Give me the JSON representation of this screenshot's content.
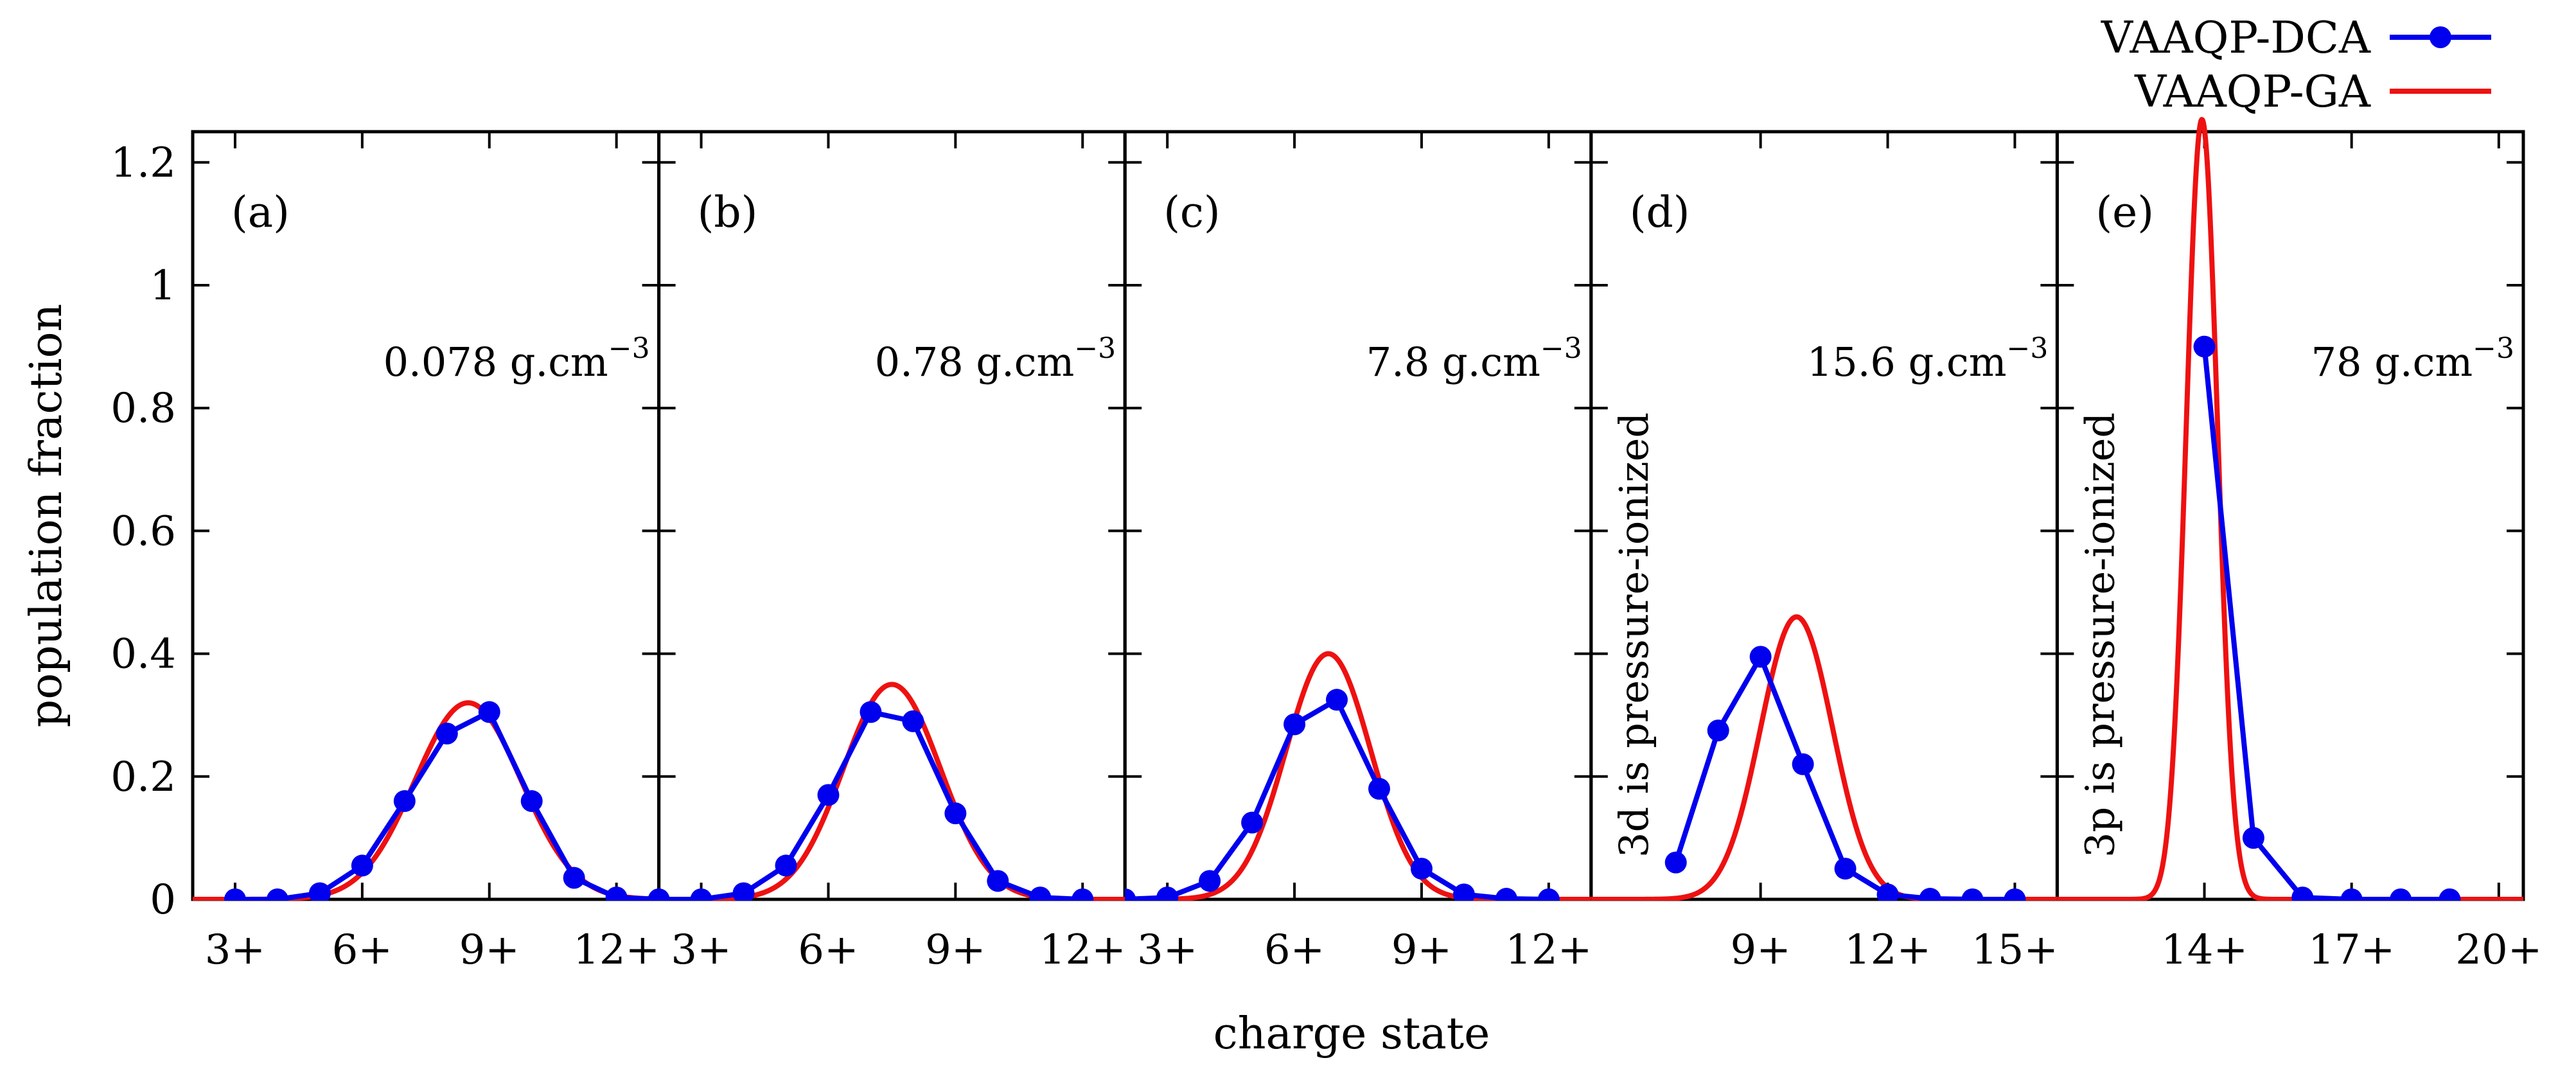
{
  "chart_data": {
    "type": "line",
    "ylabel": "population fraction",
    "xlabel": "charge state",
    "ylim": [
      0,
      1.25
    ],
    "yticks": [
      0,
      0.2,
      0.4,
      0.6,
      0.8,
      1,
      1.2
    ],
    "ytick_labels": [
      "0",
      "0.2",
      "0.4",
      "0.6",
      "0.8",
      "1",
      "1.2"
    ],
    "legend": {
      "position": "top-right",
      "entries": [
        {
          "label": "VAAQP-DCA",
          "color": "#0000ee",
          "style": "line-points"
        },
        {
          "label": "VAAQP-GA",
          "color": "#ee1111",
          "style": "line"
        }
      ]
    },
    "panels": [
      {
        "tag": "(a)",
        "density_value": "0.078",
        "density_unit": "g.cm",
        "density_exp": "−3",
        "xlim": [
          2,
          13
        ],
        "xticks": [
          3,
          6,
          9,
          12
        ],
        "xtick_labels": [
          "3+",
          "6+",
          "9+",
          "12+"
        ],
        "note": "",
        "dca": {
          "x": [
            3,
            4,
            5,
            6,
            7,
            8,
            9,
            10,
            11,
            12,
            13
          ],
          "y": [
            0.0,
            0.0,
            0.01,
            0.055,
            0.16,
            0.27,
            0.305,
            0.16,
            0.035,
            0.003,
            0.0
          ]
        },
        "ga": {
          "mean": 8.5,
          "sigma": 1.25,
          "peak": 0.32
        }
      },
      {
        "tag": "(b)",
        "density_value": "0.78",
        "density_unit": "g.cm",
        "density_exp": "−3",
        "xlim": [
          2,
          13
        ],
        "xticks": [
          3,
          6,
          9,
          12
        ],
        "xtick_labels": [
          "3+",
          "6+",
          "9+",
          "12+"
        ],
        "note": "",
        "dca": {
          "x": [
            2,
            3,
            4,
            5,
            6,
            7,
            8,
            9,
            10,
            11,
            12
          ],
          "y": [
            0.0,
            0.0,
            0.01,
            0.055,
            0.17,
            0.305,
            0.29,
            0.14,
            0.03,
            0.003,
            0.0
          ]
        },
        "ga": {
          "mean": 7.5,
          "sigma": 1.15,
          "peak": 0.35
        }
      },
      {
        "tag": "(c)",
        "density_value": "7.8",
        "density_unit": "g.cm",
        "density_exp": "−3",
        "xlim": [
          2,
          13
        ],
        "xticks": [
          3,
          6,
          9,
          12
        ],
        "xtick_labels": [
          "3+",
          "6+",
          "9+",
          "12+"
        ],
        "note": "",
        "dca": {
          "x": [
            2,
            3,
            4,
            5,
            6,
            7,
            8,
            9,
            10,
            11,
            12
          ],
          "y": [
            0.0,
            0.003,
            0.03,
            0.125,
            0.285,
            0.325,
            0.18,
            0.05,
            0.008,
            0.001,
            0.0
          ]
        },
        "ga": {
          "mean": 6.8,
          "sigma": 1.0,
          "peak": 0.4
        }
      },
      {
        "tag": "(d)",
        "density_value": "15.6",
        "density_unit": "g.cm",
        "density_exp": "−3",
        "xlim": [
          5,
          16
        ],
        "xticks": [
          9,
          12,
          15
        ],
        "xtick_labels": [
          "9+",
          "12+",
          "15+"
        ],
        "note": "3d is pressure-ionized",
        "dca": {
          "x": [
            7,
            8,
            9,
            10,
            11,
            12,
            13,
            14,
            15
          ],
          "y": [
            0.06,
            0.275,
            0.395,
            0.22,
            0.05,
            0.008,
            0.001,
            0.0,
            0.0
          ]
        },
        "ga": {
          "mean": 9.85,
          "sigma": 0.85,
          "peak": 0.46
        }
      },
      {
        "tag": "(e)",
        "density_value": "78",
        "density_unit": "g.cm",
        "density_exp": "−3",
        "xlim": [
          11,
          20.5
        ],
        "xticks": [
          14,
          17,
          20
        ],
        "xtick_labels": [
          "14+",
          "17+",
          "20+"
        ],
        "note": "3p is pressure-ionized",
        "dca": {
          "x": [
            14,
            15,
            16,
            17,
            18,
            19
          ],
          "y": [
            0.9,
            0.1,
            0.003,
            0.0,
            0.0,
            0.0
          ]
        },
        "ga": {
          "mean": 13.95,
          "sigma": 0.32,
          "peak": 1.27
        }
      }
    ]
  }
}
